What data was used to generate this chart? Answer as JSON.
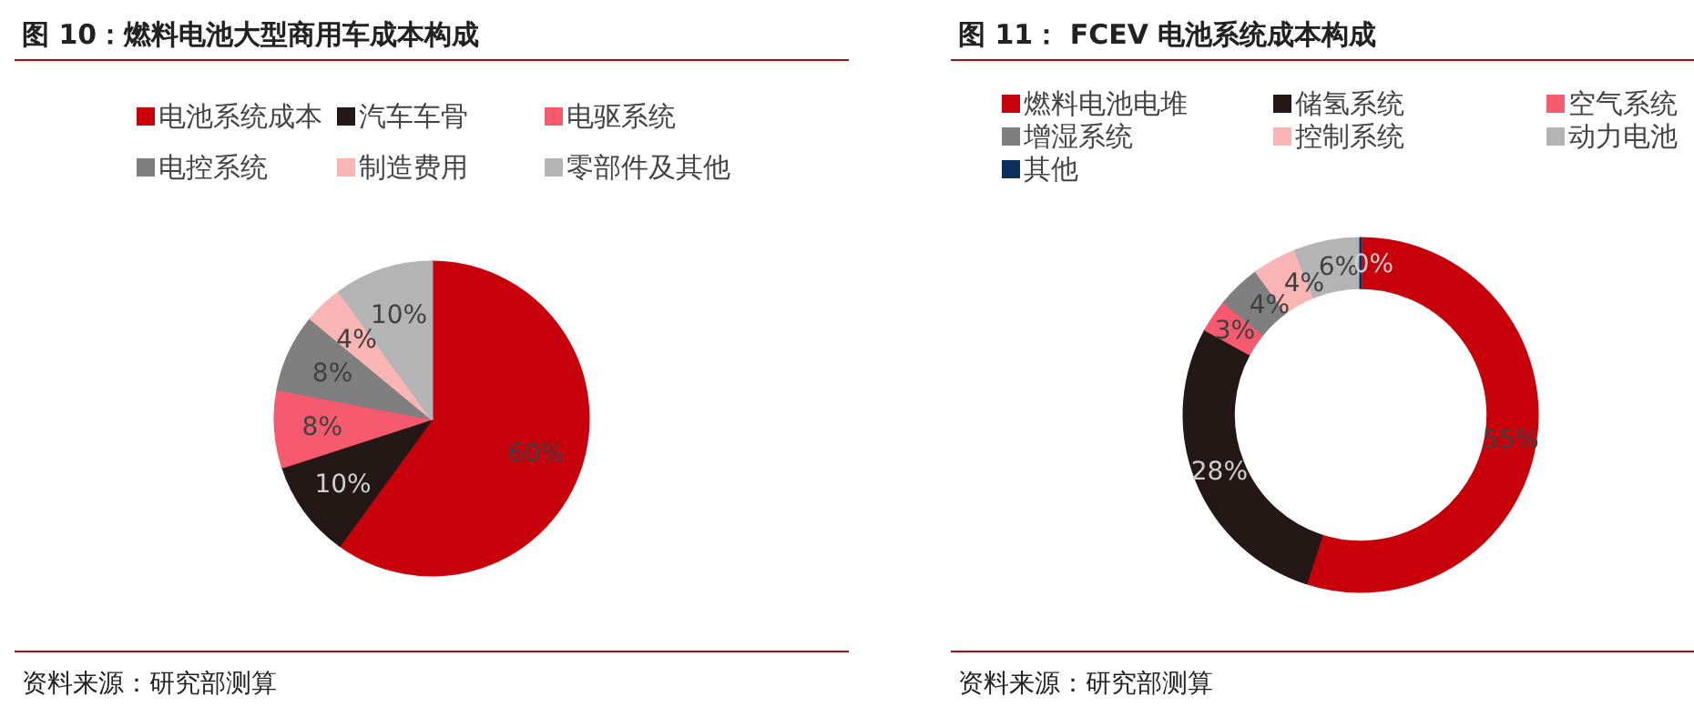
{
  "chart_data": [
    {
      "type": "pie",
      "title": "图 10：燃料电池大型商用车成本构成",
      "categories": [
        "电池系统成本",
        "汽车车骨",
        "电驱系统",
        "电控系统",
        "制造费用",
        "零部件及其他"
      ],
      "values": [
        60,
        10,
        8,
        8,
        4,
        10
      ],
      "colors": [
        "#c8000b",
        "#231815",
        "#f55a6e",
        "#7f7f7f",
        "#f9b4b4",
        "#b4b4b4"
      ],
      "legend": "top",
      "value_labels": [
        "60%",
        "10%",
        "8%",
        "8%",
        "4%",
        "10%"
      ],
      "annotations": [
        "资料来源：研究部测算"
      ]
    },
    {
      "type": "donut",
      "title": "图 11：  FCEV 电池系统成本构成",
      "categories": [
        "燃料电池电堆",
        "储氢系统",
        "空气系统",
        "增湿系统",
        "控制系统",
        "动力电池",
        "其他"
      ],
      "values": [
        55,
        28,
        3,
        4,
        4,
        6,
        0
      ],
      "colors": [
        "#c8000b",
        "#231815",
        "#f55a6e",
        "#7f7f7f",
        "#f9b4b4",
        "#b4b4b4",
        "#0c2f5e"
      ],
      "legend": "top",
      "value_labels": [
        "55%",
        "28%",
        "3%",
        "4%",
        "4%",
        "6%",
        "0%"
      ],
      "annotations": [
        "资料来源：研究部测算"
      ]
    }
  ]
}
